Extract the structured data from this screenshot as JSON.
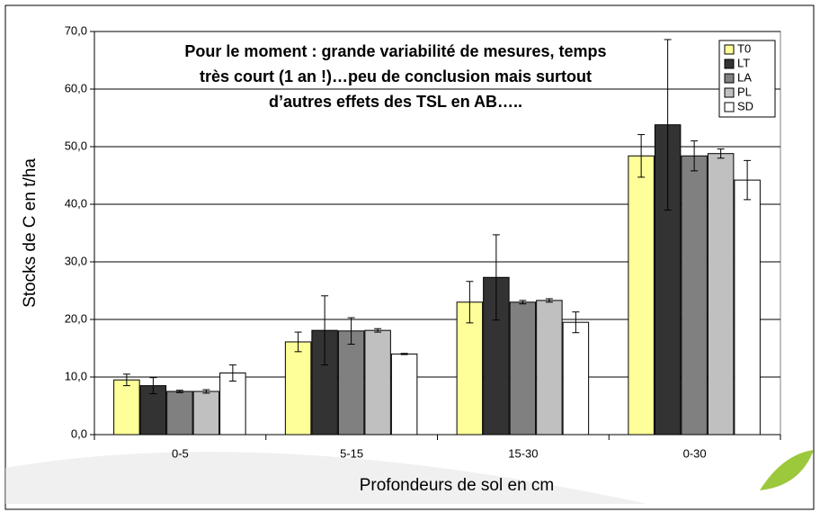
{
  "chart_data": {
    "type": "bar",
    "annotation": [
      "Pour le moment : grande variabilité de mesures, temps",
      "très court (1 an !)…peu de conclusion mais surtout",
      "d’autres effets des TSL en AB….."
    ],
    "x_label": "Profondeurs de sol en cm",
    "y_label": "Stocks de C en t/ha",
    "categories": [
      "0-5",
      "5-15",
      "15-30",
      "0-30"
    ],
    "series": [
      {
        "name": "T0",
        "color": "#ffff99",
        "values": [
          9.5,
          16.1,
          23.0,
          48.4
        ],
        "errors": [
          1.0,
          1.7,
          3.6,
          3.7
        ]
      },
      {
        "name": "LT",
        "color": "#333333",
        "values": [
          8.5,
          18.1,
          27.3,
          53.8
        ],
        "errors": [
          1.4,
          6.0,
          7.4,
          14.8
        ]
      },
      {
        "name": "LA",
        "color": "#808080",
        "values": [
          7.5,
          18.0,
          23.0,
          48.4
        ],
        "errors": [
          0.2,
          2.3,
          0.3,
          2.6
        ]
      },
      {
        "name": "PL",
        "color": "#c0c0c0",
        "values": [
          7.5,
          18.1,
          23.3,
          48.8
        ],
        "errors": [
          0.3,
          0.3,
          0.3,
          0.8
        ]
      },
      {
        "name": "SD",
        "color": "#ffffff",
        "values": [
          10.7,
          14.0,
          19.5,
          44.2
        ],
        "errors": [
          1.4,
          0.1,
          1.8,
          3.4
        ]
      }
    ],
    "ylim": [
      0,
      70
    ],
    "yticks": [
      {
        "value": 0,
        "label": "0,0"
      },
      {
        "value": 10,
        "label": "10,0"
      },
      {
        "value": 20,
        "label": "20,0"
      },
      {
        "value": 30,
        "label": "30,0"
      },
      {
        "value": 40,
        "label": "40,0"
      },
      {
        "value": 50,
        "label": "50,0"
      },
      {
        "value": 60,
        "label": "60,0"
      },
      {
        "value": 70,
        "label": "70,0"
      }
    ],
    "grid": true,
    "legend": "top-right"
  }
}
